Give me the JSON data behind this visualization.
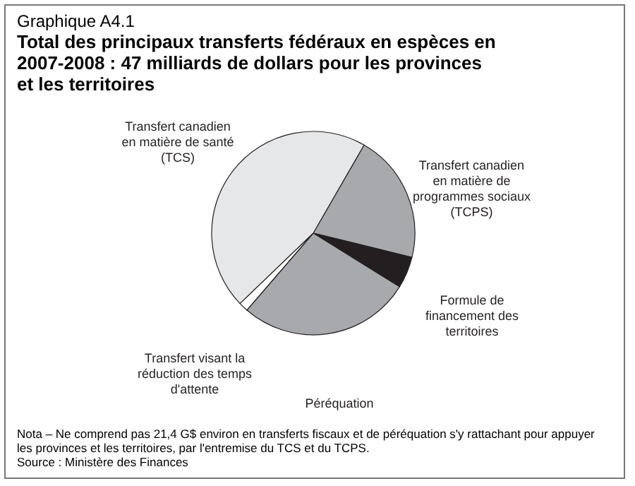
{
  "chart_data": {
    "type": "pie",
    "subtitle": "Graphique A4.1",
    "title": "Total des principaux transferts fédéraux en espèces en 2007-2008 : 47 milliards de dollars pour les provinces et les territoires",
    "categories": [
      "Transfert canadien en matière de programmes sociaux (TCPS)",
      "Formule de financement des territoires",
      "Péréquation",
      "Transfert visant la réduction des temps d'attente",
      "Transfert canadien en matière de santé (TCS)"
    ],
    "values": [
      20.5,
      5,
      27.5,
      1.5,
      45.5
    ],
    "colors": [
      "#a7a9ac",
      "#231f20",
      "#a7a9ac",
      "#ffffff",
      "#e6e7e8"
    ],
    "legend": false,
    "annotations": [
      "Nota – Ne comprend pas 21,4 G$ environ en transferts fiscaux et de péréquation s'y rattachant pour appuyer les provinces et les territoires, par l'entremise du TCS et du TCPS.",
      "Source : Ministère des Finances"
    ]
  }
}
